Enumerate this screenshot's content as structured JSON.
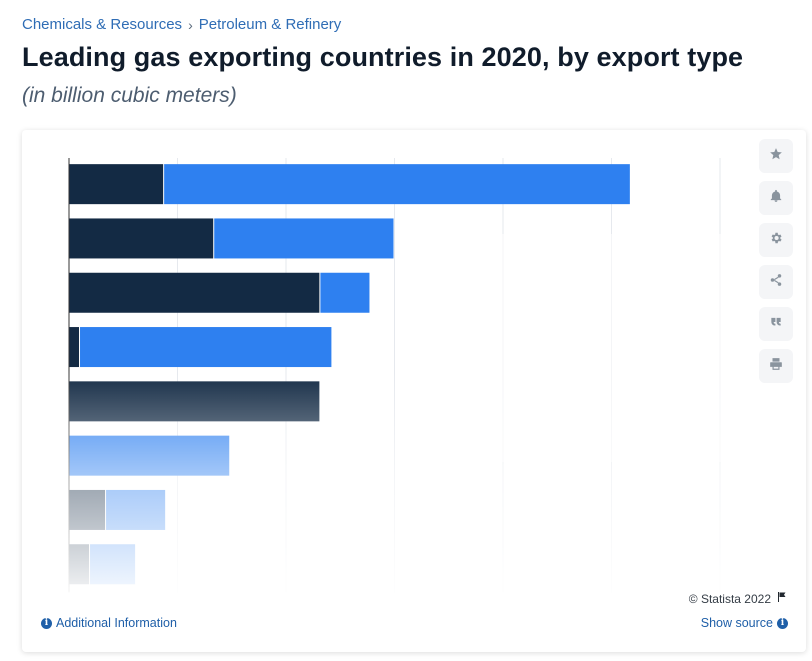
{
  "breadcrumb": {
    "items": [
      "Chemicals & Resources",
      "Petroleum & Refinery"
    ],
    "separator": "›"
  },
  "header": {
    "title": "Leading gas exporting countries in 2020, by export type",
    "subtitle": "(in billion cubic meters)"
  },
  "toolbar": {
    "icons": [
      "star-icon",
      "bell-icon",
      "gear-icon",
      "share-icon",
      "quote-icon",
      "print-icon"
    ]
  },
  "footer": {
    "copyright": "© Statista 2022",
    "additional_info": "Additional Information",
    "show_source": "Show source"
  },
  "colors": {
    "pipeline": "#132a44",
    "lng": "#2e80f0",
    "gridline": "#e6e9ee",
    "axis": "#333333"
  },
  "chart_data": {
    "type": "bar",
    "orientation": "horizontal",
    "stacked": true,
    "categories": [
      "",
      "",
      "",
      "",
      "",
      "",
      "",
      ""
    ],
    "series": [
      {
        "values": [
          47,
          72,
          125,
          5,
          125,
          0,
          18,
          10
        ],
        "color": "#132a44"
      },
      {
        "values": [
          233,
          90,
          25,
          126,
          0,
          80,
          30,
          23
        ],
        "color": "#2e80f0"
      }
    ],
    "xlim": [
      0,
      325
    ],
    "grid": true
  }
}
